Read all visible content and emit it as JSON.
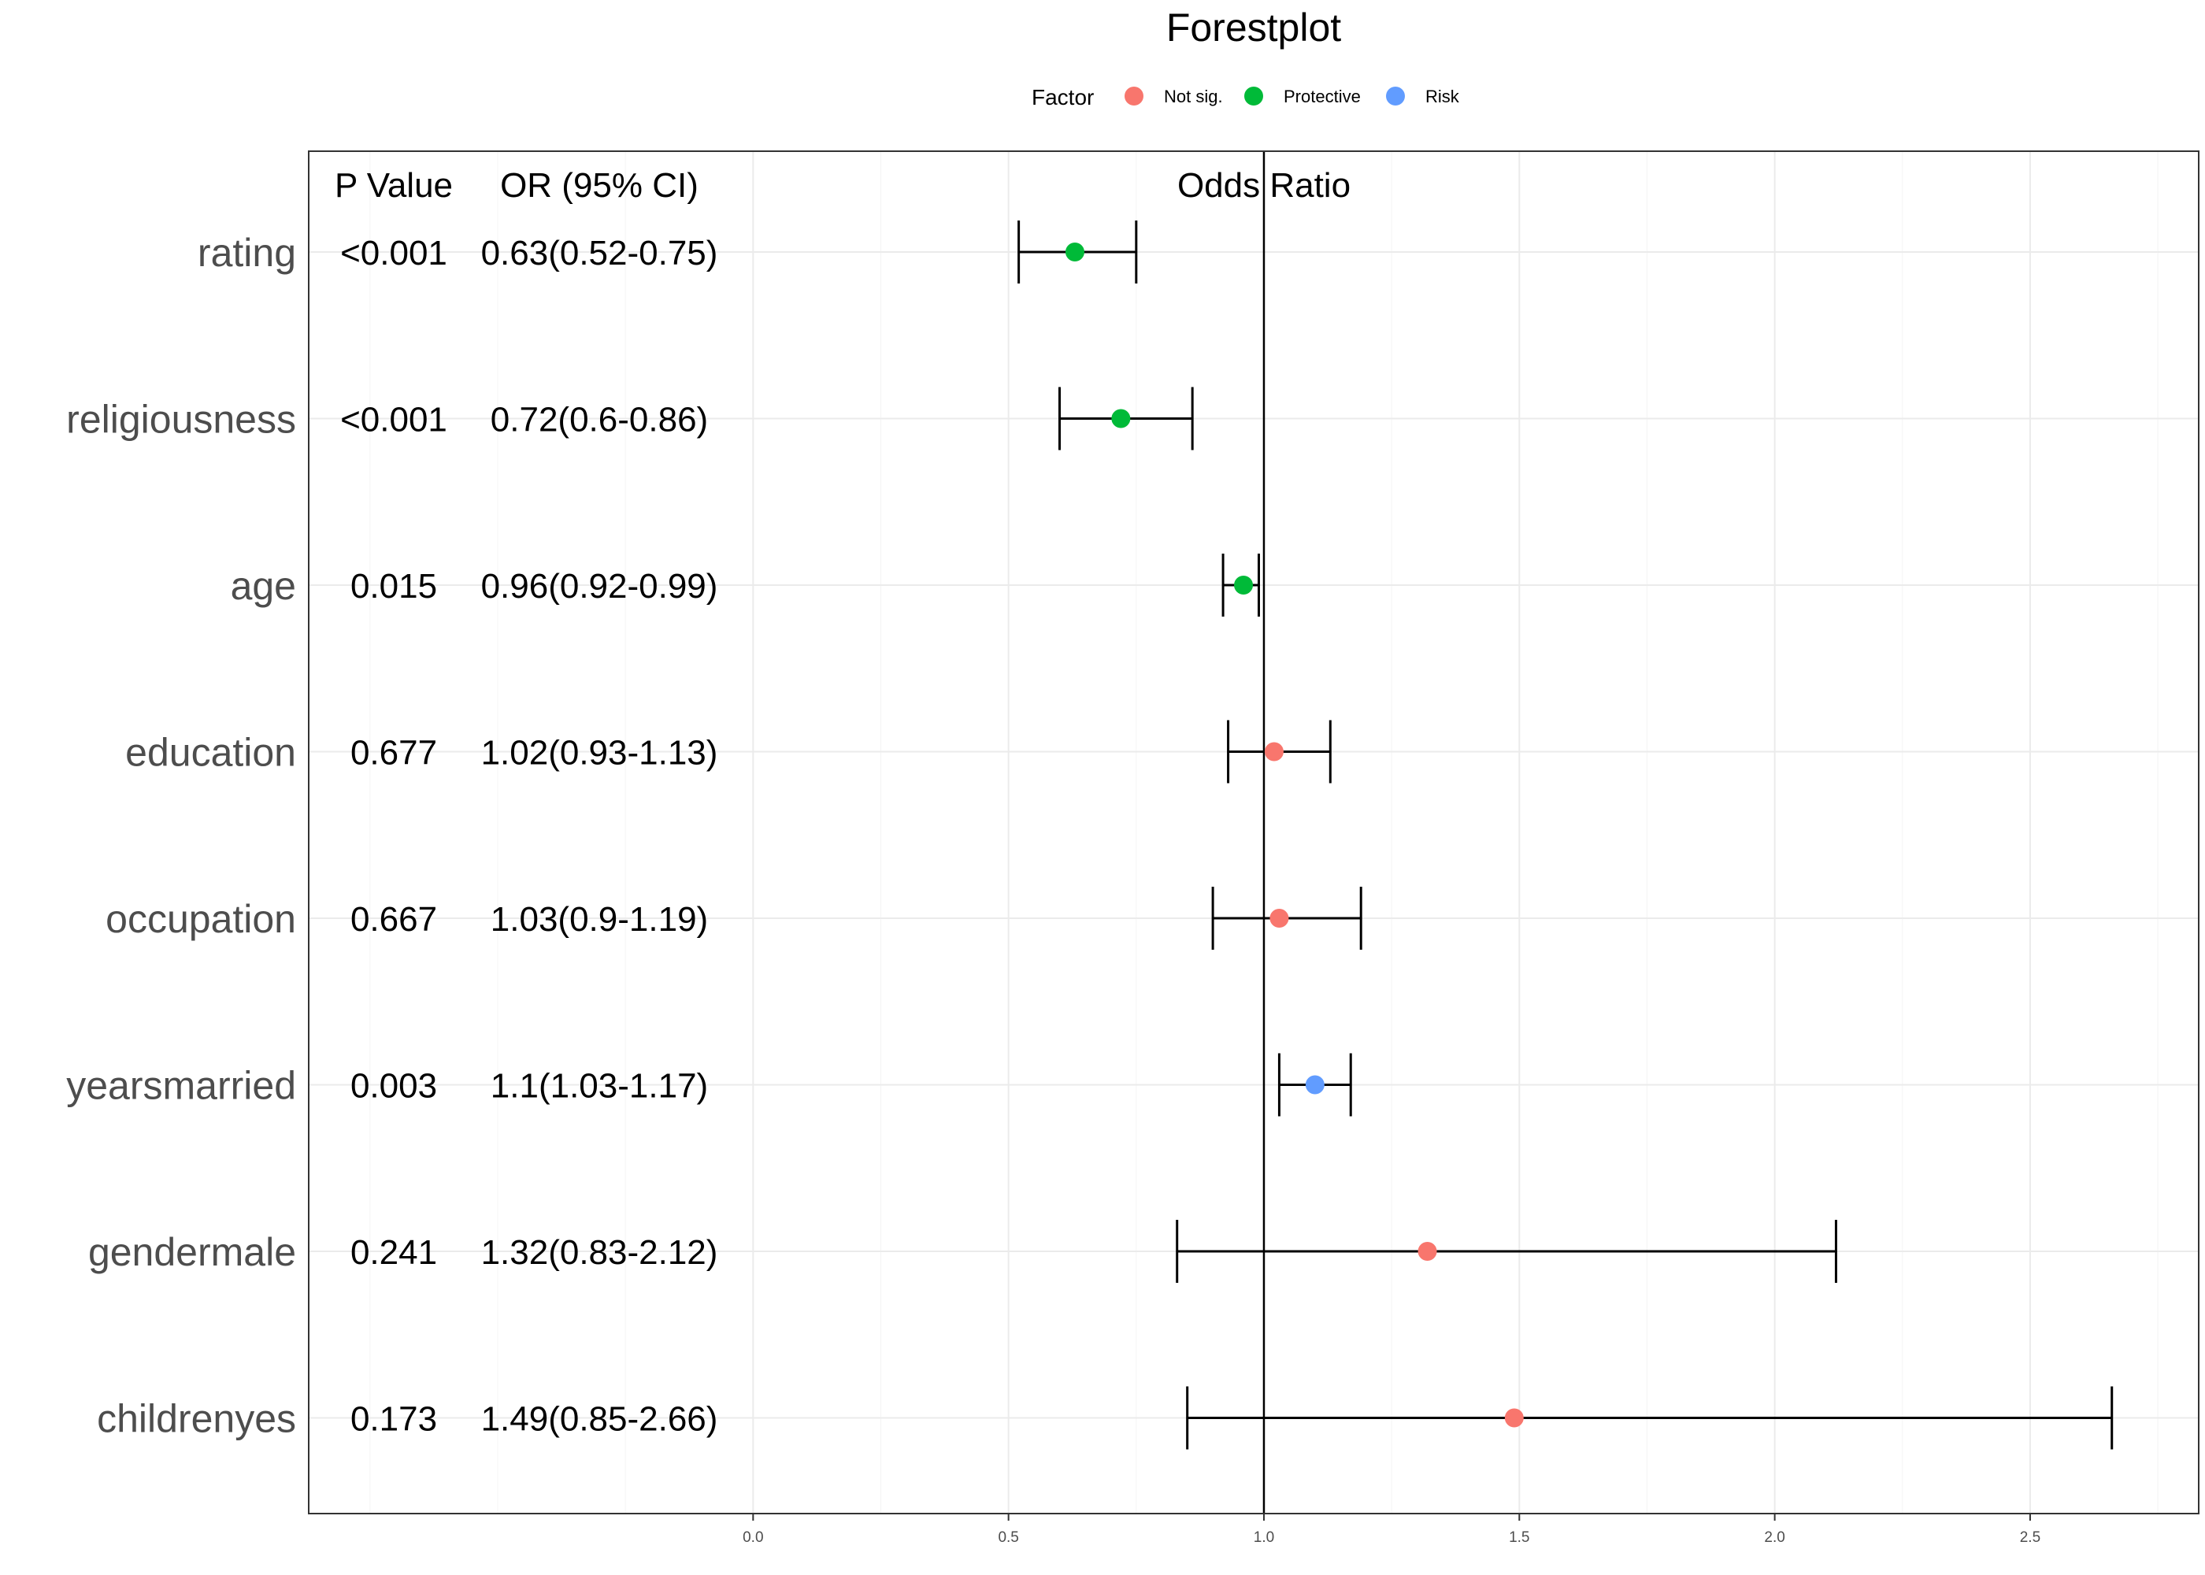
{
  "chart_data": {
    "type": "forest",
    "title": "Forestplot",
    "legend": {
      "title": "Factor",
      "placement": "top",
      "items": [
        {
          "label": "Not sig.",
          "color": "#F8766D"
        },
        {
          "label": "Protective",
          "color": "#00BA38"
        },
        {
          "label": "Risk",
          "color": "#619CFF"
        }
      ]
    },
    "column_headers": {
      "p_value": "P Value",
      "or_ci": "OR (95% CI)",
      "odds_ratio": "Odds Ratio"
    },
    "reference_line": 1.0,
    "xlim": [
      -0.87,
      2.83
    ],
    "x_ticks": [
      {
        "value": 0.0,
        "label": "0.0"
      },
      {
        "value": 0.5,
        "label": "0.5"
      },
      {
        "value": 1.0,
        "label": "1.0"
      },
      {
        "value": 1.5,
        "label": "1.5"
      },
      {
        "value": 2.0,
        "label": "2.0"
      },
      {
        "value": 2.5,
        "label": "2.5"
      }
    ],
    "grid": true,
    "rows": [
      {
        "label": "rating",
        "p_value": "<0.001",
        "or_ci": "0.63(0.52-0.75)",
        "or": 0.63,
        "lower": 0.52,
        "upper": 0.75,
        "factor": "Protective"
      },
      {
        "label": "religiousness",
        "p_value": "<0.001",
        "or_ci": "0.72(0.6-0.86)",
        "or": 0.72,
        "lower": 0.6,
        "upper": 0.86,
        "factor": "Protective"
      },
      {
        "label": "age",
        "p_value": "0.015",
        "or_ci": "0.96(0.92-0.99)",
        "or": 0.96,
        "lower": 0.92,
        "upper": 0.99,
        "factor": "Protective"
      },
      {
        "label": "education",
        "p_value": "0.677",
        "or_ci": "1.02(0.93-1.13)",
        "or": 1.02,
        "lower": 0.93,
        "upper": 1.13,
        "factor": "Not sig."
      },
      {
        "label": "occupation",
        "p_value": "0.667",
        "or_ci": "1.03(0.9-1.19)",
        "or": 1.03,
        "lower": 0.9,
        "upper": 1.19,
        "factor": "Not sig."
      },
      {
        "label": "yearsmarried",
        "p_value": "0.003",
        "or_ci": "1.1(1.03-1.17)",
        "or": 1.1,
        "lower": 1.03,
        "upper": 1.17,
        "factor": "Risk"
      },
      {
        "label": "gendermale",
        "p_value": "0.241",
        "or_ci": "1.32(0.83-2.12)",
        "or": 1.32,
        "lower": 0.83,
        "upper": 2.12,
        "factor": "Not sig."
      },
      {
        "label": "childrenyes",
        "p_value": "0.173",
        "or_ci": "1.49(0.85-2.66)",
        "or": 1.49,
        "lower": 0.85,
        "upper": 2.66,
        "factor": "Not sig."
      }
    ]
  }
}
